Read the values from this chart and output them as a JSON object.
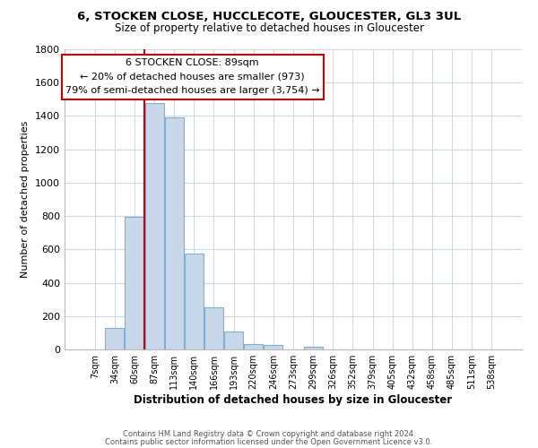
{
  "title": "6, STOCKEN CLOSE, HUCCLECOTE, GLOUCESTER, GL3 3UL",
  "subtitle": "Size of property relative to detached houses in Gloucester",
  "xlabel": "Distribution of detached houses by size in Gloucester",
  "ylabel": "Number of detached properties",
  "bar_labels": [
    "7sqm",
    "34sqm",
    "60sqm",
    "87sqm",
    "113sqm",
    "140sqm",
    "166sqm",
    "193sqm",
    "220sqm",
    "246sqm",
    "273sqm",
    "299sqm",
    "326sqm",
    "352sqm",
    "379sqm",
    "405sqm",
    "432sqm",
    "458sqm",
    "485sqm",
    "511sqm",
    "538sqm"
  ],
  "bar_values": [
    0,
    130,
    795,
    1475,
    1390,
    575,
    250,
    110,
    30,
    25,
    0,
    15,
    0,
    0,
    0,
    0,
    0,
    0,
    0,
    0,
    0
  ],
  "bar_color": "#c8d8e8",
  "bar_edge_color": "#7bafd4",
  "property_line_bin_index": 3,
  "ylim": [
    0,
    1800
  ],
  "yticks": [
    0,
    200,
    400,
    600,
    800,
    1000,
    1200,
    1400,
    1600,
    1800
  ],
  "annotation_title": "6 STOCKEN CLOSE: 89sqm",
  "annotation_line1": "← 20% of detached houses are smaller (973)",
  "annotation_line2": "79% of semi-detached houses are larger (3,754) →",
  "footer1": "Contains HM Land Registry data © Crown copyright and database right 2024.",
  "footer2": "Contains public sector information licensed under the Open Government Licence v3.0.",
  "bg_color": "#ffffff",
  "grid_color": "#d0d8e0",
  "annotation_box_color": "#ffffff",
  "annotation_box_edge": "#cc0000",
  "property_line_color": "#cc0000"
}
